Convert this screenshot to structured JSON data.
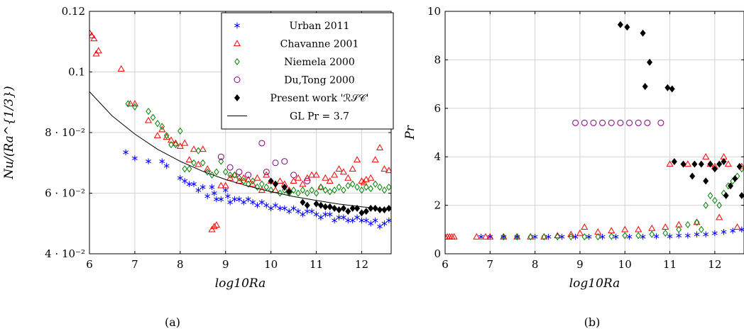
{
  "chart_data": [
    {
      "type": "scatter",
      "caption": "(a)",
      "xlabel": "log10Ra",
      "ylabel": "Nu/(Ra^{1/3})",
      "xlim": [
        6,
        12.65
      ],
      "ylim": [
        0.04,
        0.12
      ],
      "x_ticks": [
        6,
        7,
        8,
        9,
        10,
        11,
        12
      ],
      "x_tick_labels": [
        "6",
        "7",
        "8",
        "9",
        "10",
        "11",
        "12"
      ],
      "y_ticks": [
        0.04,
        0.06,
        0.08,
        0.1,
        0.12
      ],
      "y_tick_labels": [
        "4 · 10⁻²",
        "6 · 10⁻²",
        "8 · 10⁻²",
        "0.1",
        "0.12"
      ],
      "grid": true,
      "legend_position": "top-right",
      "series": [
        {
          "name": "Urban 2011",
          "marker": "asterisk",
          "color": "#0000ff",
          "x": [
            6.8,
            7.0,
            7.3,
            7.6,
            7.7,
            8.0,
            8.1,
            8.2,
            8.3,
            8.4,
            8.5,
            8.6,
            8.7,
            8.75,
            8.8,
            8.9,
            9.0,
            9.05,
            9.1,
            9.2,
            9.3,
            9.4,
            9.5,
            9.6,
            9.7,
            9.8,
            9.9,
            10.0,
            10.1,
            10.2,
            10.3,
            10.4,
            10.5,
            10.6,
            10.7,
            10.8,
            10.9,
            11.0,
            11.1,
            11.2,
            11.3,
            11.4,
            11.5,
            11.6,
            11.7,
            11.8,
            11.9,
            12.0,
            12.1,
            12.2,
            12.3,
            12.4,
            12.5,
            12.6
          ],
          "y": [
            0.0735,
            0.0715,
            0.0705,
            0.0705,
            0.069,
            0.065,
            0.064,
            0.063,
            0.063,
            0.061,
            0.062,
            0.059,
            0.062,
            0.06,
            0.058,
            0.058,
            0.061,
            0.059,
            0.057,
            0.058,
            0.058,
            0.057,
            0.058,
            0.057,
            0.056,
            0.057,
            0.056,
            0.055,
            0.056,
            0.055,
            0.055,
            0.054,
            0.055,
            0.054,
            0.053,
            0.054,
            0.054,
            0.053,
            0.052,
            0.053,
            0.053,
            0.051,
            0.052,
            0.052,
            0.051,
            0.051,
            0.052,
            0.051,
            0.051,
            0.05,
            0.051,
            0.049,
            0.05,
            0.051
          ]
        },
        {
          "name": "Chavanne 2001",
          "marker": "triangle",
          "color": "#ff0000",
          "x": [
            6.0,
            6.05,
            6.1,
            6.15,
            6.2,
            6.7,
            6.9,
            7.0,
            7.3,
            7.5,
            7.6,
            7.7,
            7.8,
            7.9,
            8.0,
            8.1,
            8.2,
            8.3,
            8.4,
            8.5,
            8.6,
            8.7,
            8.75,
            8.8,
            8.9,
            9.0,
            9.1,
            9.2,
            9.3,
            9.4,
            9.5,
            9.6,
            9.7,
            9.8,
            9.9,
            10.0,
            10.1,
            10.2,
            10.3,
            10.4,
            10.5,
            10.6,
            10.7,
            10.8,
            10.9,
            11.0,
            11.1,
            11.2,
            11.3,
            11.4,
            11.5,
            11.6,
            11.7,
            11.8,
            11.9,
            12.0,
            12.05,
            12.1,
            12.2,
            12.3,
            12.4,
            12.5,
            12.6
          ],
          "y": [
            0.113,
            0.112,
            0.111,
            0.106,
            0.107,
            0.101,
            0.0895,
            0.0895,
            0.084,
            0.079,
            0.081,
            0.0785,
            0.0775,
            0.0765,
            0.0755,
            0.0765,
            0.071,
            0.0745,
            0.0695,
            0.0745,
            0.068,
            0.048,
            0.049,
            0.0495,
            0.0625,
            0.0625,
            0.065,
            0.066,
            0.064,
            0.065,
            0.0645,
            0.063,
            0.065,
            0.061,
            0.066,
            0.064,
            0.061,
            0.064,
            0.063,
            0.061,
            0.064,
            0.065,
            0.063,
            0.065,
            0.066,
            0.066,
            0.062,
            0.065,
            0.064,
            0.066,
            0.068,
            0.067,
            0.065,
            0.068,
            0.071,
            0.064,
            0.0635,
            0.0645,
            0.065,
            0.071,
            0.075,
            0.068,
            0.0675
          ]
        },
        {
          "name": "Niemela 2000",
          "marker": "diamond",
          "color": "#008000",
          "x": [
            6.85,
            7.0,
            7.3,
            7.4,
            7.5,
            7.6,
            7.7,
            7.8,
            7.9,
            8.0,
            8.1,
            8.2,
            8.3,
            8.4,
            8.5,
            8.6,
            8.7,
            8.8,
            8.9,
            9.0,
            9.1,
            9.2,
            9.3,
            9.4,
            9.5,
            9.6,
            9.7,
            9.8,
            9.9,
            10.0,
            10.1,
            10.2,
            10.3,
            10.4,
            10.5,
            10.6,
            10.7,
            10.8,
            10.9,
            11.0,
            11.1,
            11.2,
            11.3,
            11.4,
            11.5,
            11.6,
            11.7,
            11.8,
            11.9,
            12.0,
            12.1,
            12.2,
            12.3,
            12.4,
            12.5,
            12.6
          ],
          "y": [
            0.0895,
            0.0885,
            0.087,
            0.085,
            0.083,
            0.082,
            0.079,
            0.076,
            0.076,
            0.0805,
            0.068,
            0.068,
            0.07,
            0.074,
            0.07,
            0.067,
            0.066,
            0.067,
            0.0705,
            0.067,
            0.066,
            0.066,
            0.065,
            0.064,
            0.063,
            0.064,
            0.062,
            0.063,
            0.062,
            0.061,
            0.063,
            0.06,
            0.061,
            0.06,
            0.061,
            0.06,
            0.061,
            0.06,
            0.061,
            0.06,
            0.062,
            0.061,
            0.0605,
            0.061,
            0.062,
            0.061,
            0.0625,
            0.063,
            0.062,
            0.061,
            0.062,
            0.0615,
            0.063,
            0.062,
            0.061,
            0.062
          ]
        },
        {
          "name": "Du,Tong 2000",
          "marker": "circle",
          "color": "#800080",
          "x": [
            8.9,
            9.1,
            9.3,
            9.5,
            9.8,
            9.9,
            10.1,
            10.3,
            10.5,
            10.8
          ],
          "y": [
            0.072,
            0.0685,
            0.067,
            0.066,
            0.0765,
            0.067,
            0.07,
            0.0705,
            0.066,
            0.064
          ]
        },
        {
          "name": "Present work 'ℛ𝒮𝒞'",
          "marker": "filled-diamond",
          "color": "#000000",
          "x": [
            10.0,
            10.1,
            10.3,
            10.4,
            10.7,
            10.8,
            11.0,
            11.1,
            11.2,
            11.3,
            11.4,
            11.5,
            11.6,
            11.7,
            11.8,
            11.9,
            12.0,
            12.1,
            12.2,
            12.3,
            12.4,
            12.5,
            12.6
          ],
          "y": [
            0.064,
            0.063,
            0.062,
            0.0605,
            0.057,
            0.056,
            0.0565,
            0.056,
            0.0555,
            0.0555,
            0.055,
            0.0545,
            0.055,
            0.054,
            0.055,
            0.055,
            0.0535,
            0.054,
            0.055,
            0.055,
            0.0545,
            0.0545,
            0.055
          ]
        },
        {
          "name": "GL Pr = 3.7",
          "marker": "line",
          "color": "#000000",
          "x": [
            6.0,
            6.5,
            7.0,
            7.5,
            8.0,
            8.5,
            9.0,
            9.5,
            10.0,
            10.5,
            11.0,
            11.5,
            12.0,
            12.65
          ],
          "y": [
            0.0935,
            0.0855,
            0.0795,
            0.0745,
            0.0705,
            0.0672,
            0.0645,
            0.0623,
            0.0605,
            0.0589,
            0.0576,
            0.0564,
            0.0555,
            0.0545
          ]
        }
      ]
    },
    {
      "type": "scatter",
      "caption": "(b)",
      "xlabel": "log10Ra",
      "ylabel": "Pr",
      "xlim": [
        6,
        12.65
      ],
      "ylim": [
        0,
        10
      ],
      "x_ticks": [
        6,
        7,
        8,
        9,
        10,
        11,
        12
      ],
      "x_tick_labels": [
        "6",
        "7",
        "8",
        "9",
        "10",
        "11",
        "12"
      ],
      "y_ticks": [
        0,
        2,
        4,
        6,
        8,
        10
      ],
      "y_tick_labels": [
        "0",
        "2",
        "4",
        "6",
        "8",
        "10"
      ],
      "grid": true,
      "series": [
        {
          "name": "Urban 2011",
          "marker": "asterisk",
          "color": "#0000ff",
          "x": [
            6.8,
            7.0,
            7.3,
            7.6,
            8.0,
            8.3,
            8.6,
            8.9,
            9.2,
            9.5,
            9.8,
            10.1,
            10.4,
            10.7,
            11.0,
            11.2,
            11.4,
            11.6,
            11.8,
            12.0,
            12.2,
            12.4,
            12.6
          ],
          "y": [
            0.7,
            0.7,
            0.7,
            0.7,
            0.7,
            0.7,
            0.7,
            0.7,
            0.7,
            0.7,
            0.7,
            0.7,
            0.7,
            0.72,
            0.72,
            0.75,
            0.75,
            0.8,
            0.8,
            0.85,
            0.9,
            0.95,
            1.0
          ]
        },
        {
          "name": "Chavanne 2001",
          "marker": "triangle",
          "color": "#ff0000",
          "x": [
            6.0,
            6.05,
            6.1,
            6.15,
            6.2,
            6.7,
            6.9,
            7.0,
            7.3,
            7.6,
            7.9,
            8.2,
            8.5,
            8.8,
            9.0,
            9.1,
            9.4,
            9.7,
            10.0,
            10.3,
            10.6,
            10.9,
            11.0,
            11.2,
            11.4,
            11.6,
            11.8,
            11.9,
            12.0,
            12.1,
            12.2,
            12.3,
            12.5,
            12.6
          ],
          "y": [
            0.7,
            0.7,
            0.7,
            0.7,
            0.7,
            0.7,
            0.7,
            0.7,
            0.7,
            0.7,
            0.7,
            0.7,
            0.75,
            0.8,
            0.85,
            1.1,
            0.9,
            0.95,
            1.0,
            1.0,
            1.05,
            1.1,
            3.7,
            1.2,
            3.7,
            1.3,
            4.0,
            3.7,
            3.6,
            1.5,
            4.0,
            3.7,
            1.1,
            3.6
          ]
        },
        {
          "name": "Niemela 2000",
          "marker": "diamond",
          "color": "#008000",
          "x": [
            7.3,
            7.6,
            7.9,
            8.2,
            8.5,
            8.8,
            9.1,
            9.4,
            9.7,
            10.0,
            10.3,
            10.6,
            10.9,
            11.2,
            11.4,
            11.6,
            11.7,
            11.8,
            11.9,
            12.0,
            12.1,
            12.2,
            12.3,
            12.4,
            12.5,
            12.6
          ],
          "y": [
            0.7,
            0.7,
            0.7,
            0.7,
            0.7,
            0.7,
            0.7,
            0.7,
            0.72,
            0.75,
            0.75,
            0.8,
            0.85,
            1.0,
            1.2,
            1.3,
            1.0,
            2.0,
            2.4,
            2.2,
            2.0,
            2.5,
            2.8,
            3.0,
            3.2,
            3.5
          ]
        },
        {
          "name": "Du,Tong 2000",
          "marker": "circle",
          "color": "#800080",
          "x": [
            8.9,
            9.1,
            9.3,
            9.5,
            9.7,
            9.9,
            10.1,
            10.3,
            10.5,
            10.8
          ],
          "y": [
            5.4,
            5.4,
            5.4,
            5.4,
            5.4,
            5.4,
            5.4,
            5.4,
            5.4,
            5.4
          ]
        },
        {
          "name": "Present work 'ℛ𝒮𝒞'",
          "marker": "filled-diamond",
          "color": "#000000",
          "x": [
            9.9,
            10.05,
            10.4,
            10.45,
            10.55,
            10.95,
            11.05,
            11.1,
            11.3,
            11.5,
            11.55,
            11.7,
            11.8,
            11.9,
            12.0,
            12.1,
            12.2,
            12.25,
            12.35,
            12.45,
            12.55,
            12.6
          ],
          "y": [
            9.45,
            9.35,
            9.1,
            6.9,
            7.9,
            6.85,
            6.8,
            3.8,
            3.7,
            3.2,
            3.7,
            3.7,
            3.0,
            3.7,
            3.5,
            3.7,
            3.8,
            2.4,
            2.8,
            3.1,
            3.6,
            2.4
          ]
        }
      ]
    }
  ]
}
